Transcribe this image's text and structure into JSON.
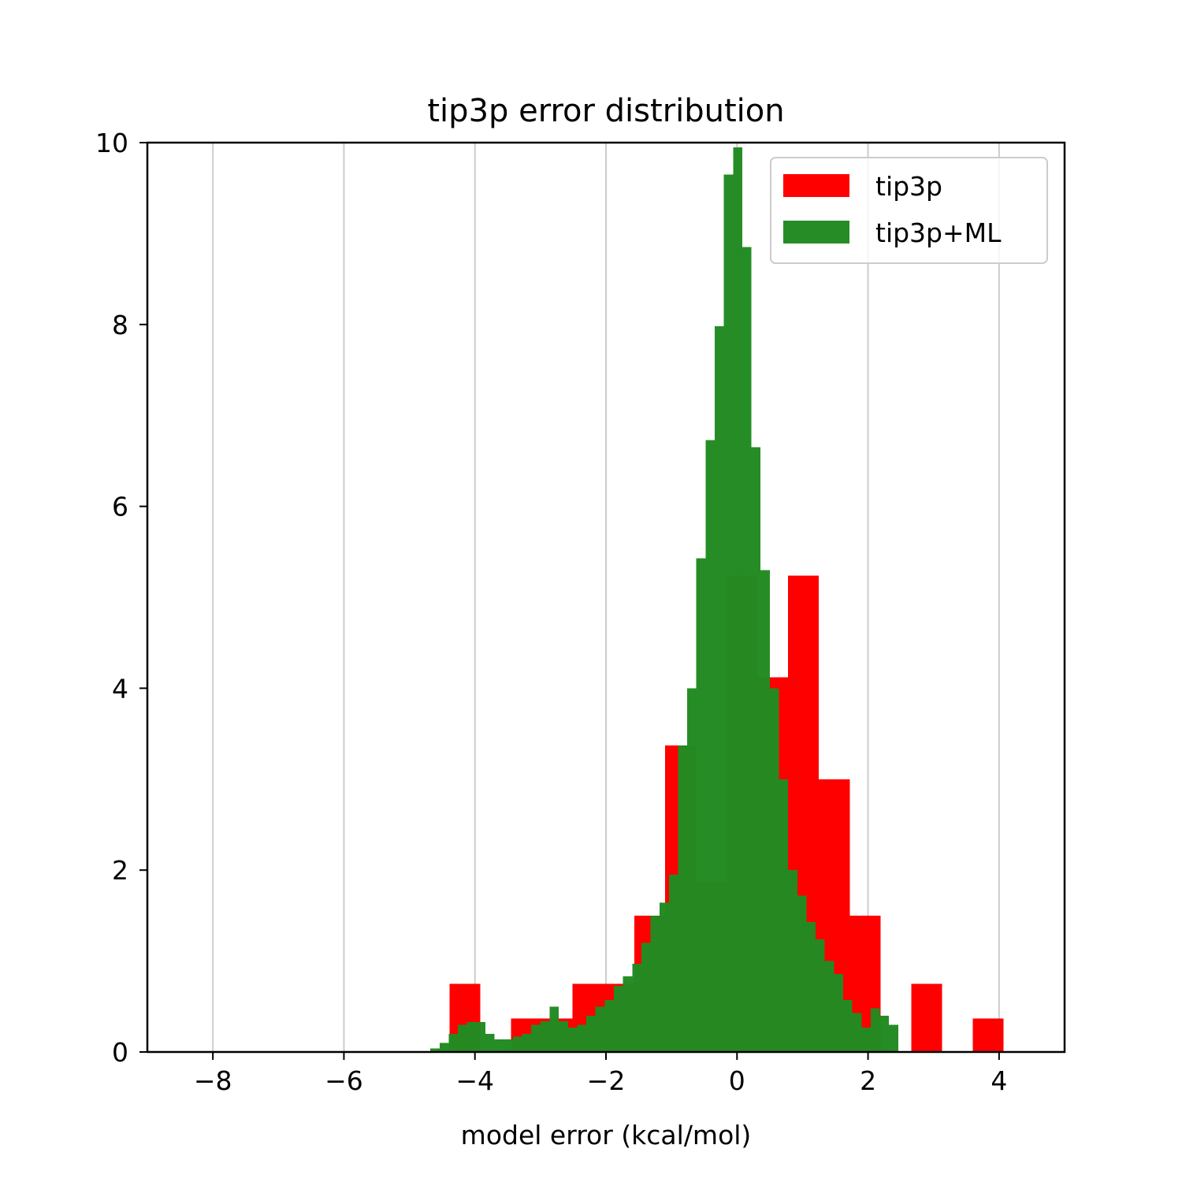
{
  "chart_data": {
    "type": "bar",
    "title": "tip3p error distribution",
    "xlabel": "model error (kcal/mol)",
    "ylabel": "",
    "xlim": [
      -9,
      5
    ],
    "ylim": [
      0,
      10
    ],
    "x_ticks": [
      -8,
      -6,
      -4,
      -2,
      0,
      2,
      4
    ],
    "x_tick_labels": [
      "−8",
      "−6",
      "−4",
      "−2",
      "0",
      "2",
      "4"
    ],
    "y_ticks": [
      0,
      2,
      4,
      6,
      8,
      10
    ],
    "y_tick_labels": [
      "0",
      "2",
      "4",
      "6",
      "8",
      "10"
    ],
    "grid": "x-axis vertical lines",
    "legend_position": "top-right",
    "series": [
      {
        "name": "tip3p",
        "color": "#ff0000",
        "opacity": 1,
        "bin_width": 0.47,
        "bin_starts": [
          -4.39,
          -3.92,
          -3.45,
          -2.98,
          -2.51,
          -2.04,
          -1.57,
          -1.1,
          -0.63,
          -0.16,
          0.31,
          0.78,
          1.25,
          1.72,
          2.19,
          2.66,
          3.13,
          3.6
        ],
        "values": [
          0.75,
          0.0,
          0.37,
          0.37,
          0.75,
          0.75,
          1.5,
          3.37,
          1.87,
          5.24,
          4.12,
          5.24,
          3.0,
          1.5,
          0.0,
          0.75,
          0.0,
          0.37
        ]
      },
      {
        "name": "tip3p+ML",
        "color": "#228b22",
        "opacity": 0.98,
        "bin_width": 0.14,
        "bin_starts": [
          -4.68,
          -4.54,
          -4.4,
          -4.26,
          -4.12,
          -3.98,
          -3.84,
          -3.7,
          -3.56,
          -3.42,
          -3.28,
          -3.14,
          -3.0,
          -2.86,
          -2.72,
          -2.58,
          -2.44,
          -2.3,
          -2.16,
          -2.02,
          -1.88,
          -1.74,
          -1.6,
          -1.46,
          -1.32,
          -1.18,
          -1.04,
          -0.9,
          -0.76,
          -0.62,
          -0.48,
          -0.34,
          -0.2,
          -0.06,
          0.08,
          0.22,
          0.36,
          0.5,
          0.64,
          0.78,
          0.92,
          1.06,
          1.2,
          1.34,
          1.48,
          1.62,
          1.76,
          1.9,
          2.04,
          2.18,
          2.32
        ],
        "values": [
          0.04,
          0.1,
          0.2,
          0.3,
          0.33,
          0.33,
          0.2,
          0.14,
          0.14,
          0.17,
          0.2,
          0.3,
          0.34,
          0.5,
          0.34,
          0.27,
          0.3,
          0.4,
          0.5,
          0.57,
          0.73,
          0.83,
          0.97,
          1.2,
          1.5,
          1.64,
          1.95,
          3.37,
          4.0,
          5.43,
          6.73,
          7.98,
          9.65,
          9.95,
          8.85,
          6.65,
          5.3,
          4.0,
          3.0,
          2.0,
          1.72,
          1.43,
          1.24,
          1.0,
          0.86,
          0.57,
          0.43,
          0.27,
          0.48,
          0.4,
          0.3
        ]
      }
    ]
  }
}
